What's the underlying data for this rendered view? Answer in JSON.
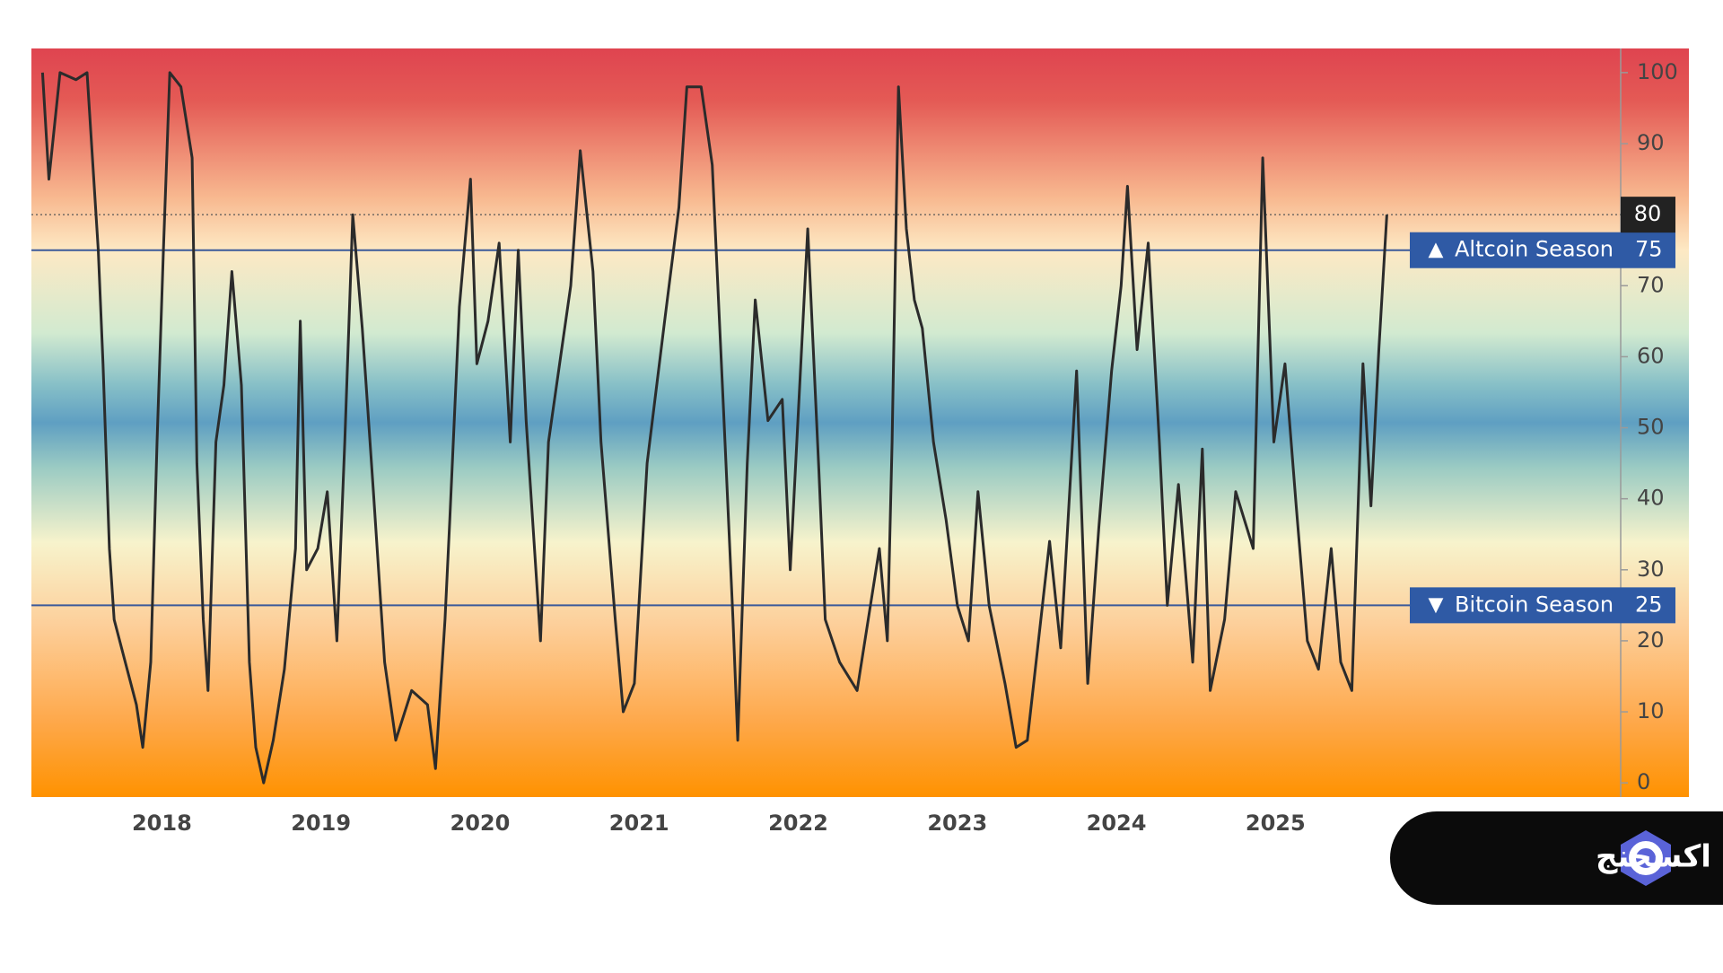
{
  "chart_data": {
    "type": "line",
    "x": [
      2017.25,
      2017.29,
      2017.36,
      2017.46,
      2017.53,
      2017.6,
      2017.63,
      2017.67,
      2017.7,
      2017.77,
      2017.84,
      2017.88,
      2017.93,
      2017.97,
      2018.01,
      2018.05,
      2018.12,
      2018.19,
      2018.22,
      2018.26,
      2018.29,
      2018.34,
      2018.39,
      2018.44,
      2018.5,
      2018.55,
      2018.59,
      2018.64,
      2018.7,
      2018.77,
      2018.84,
      2018.87,
      2018.91,
      2018.98,
      2019.04,
      2019.1,
      2019.15,
      2019.2,
      2019.26,
      2019.33,
      2019.4,
      2019.47,
      2019.57,
      2019.67,
      2019.72,
      2019.78,
      2019.81,
      2019.87,
      2019.94,
      2019.98,
      2020.05,
      2020.12,
      2020.19,
      2020.24,
      2020.29,
      2020.38,
      2020.43,
      2020.5,
      2020.57,
      2020.63,
      2020.71,
      2020.76,
      2020.85,
      2020.9,
      2020.97,
      2021.05,
      2021.16,
      2021.25,
      2021.3,
      2021.39,
      2021.46,
      2021.54,
      2021.59,
      2021.62,
      2021.68,
      2021.73,
      2021.81,
      2021.9,
      2021.95,
      2022.06,
      2022.13,
      2022.17,
      2022.26,
      2022.37,
      2022.44,
      2022.51,
      2022.56,
      2022.59,
      2022.63,
      2022.68,
      2022.73,
      2022.78,
      2022.85,
      2022.93,
      2023.0,
      2023.07,
      2023.13,
      2023.2,
      2023.3,
      2023.37,
      2023.44,
      2023.51,
      2023.58,
      2023.65,
      2023.75,
      2023.82,
      2023.89,
      2023.97,
      2024.03,
      2024.07,
      2024.13,
      2024.2,
      2024.27,
      2024.32,
      2024.39,
      2024.48,
      2024.54,
      2024.59,
      2024.68,
      2024.75,
      2024.86,
      2024.92,
      2024.99,
      2025.06,
      2025.13,
      2025.2,
      2025.27,
      2025.35,
      2025.41,
      2025.48,
      2025.55,
      2025.6,
      2025.65,
      2025.7
    ],
    "series": [
      {
        "color": "#2b2b2b",
        "values": [
          100,
          85,
          100,
          99,
          100,
          75,
          59,
          33,
          23,
          17,
          11,
          5,
          17,
          48,
          75,
          100,
          98,
          88,
          45,
          23,
          13,
          48,
          56,
          72,
          56,
          17,
          5,
          0,
          6,
          16,
          33,
          65,
          30,
          33,
          41,
          20,
          48,
          80,
          64,
          41,
          17,
          6,
          13,
          11,
          2,
          23,
          37,
          67,
          85,
          59,
          65,
          76,
          48,
          75,
          51,
          20,
          48,
          59,
          70,
          89,
          72,
          48,
          23,
          10,
          14,
          45,
          65,
          81,
          98,
          98,
          87,
          48,
          23,
          6,
          45,
          68,
          51,
          54,
          30,
          78,
          44,
          23,
          17,
          13,
          23,
          33,
          20,
          48,
          98,
          78,
          68,
          64,
          48,
          37,
          25,
          20,
          41,
          25,
          14,
          5,
          6,
          20,
          34,
          19,
          58,
          14,
          36,
          58,
          70,
          84,
          61,
          76,
          48,
          25,
          42,
          17,
          47,
          13,
          23,
          41,
          33,
          88,
          48,
          59,
          39,
          20,
          16,
          33,
          17,
          13,
          59,
          39,
          61,
          80
        ]
      }
    ],
    "xlim": [
      2017.18,
      2027.17
    ],
    "xticks": [
      2018,
      2019,
      2020,
      2021,
      2022,
      2023,
      2024,
      2025
    ],
    "ylim": [
      -2,
      103.4
    ],
    "yticks": [
      0,
      10,
      20,
      30,
      40,
      50,
      60,
      70,
      80,
      90,
      100
    ],
    "reference_lines": [
      {
        "value": 75,
        "label": "Altcoin Season",
        "color": "#3b5a9a"
      },
      {
        "value": 25,
        "label": "Bitcoin Season",
        "color": "#3b5a9a"
      }
    ]
  },
  "brand": {
    "name": "اوکی اکسچنج"
  }
}
